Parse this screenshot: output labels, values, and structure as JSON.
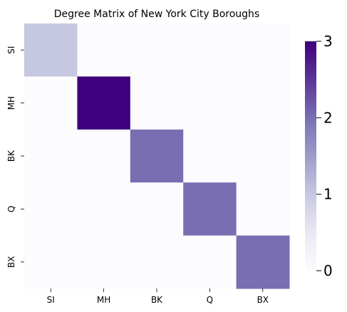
{
  "chart_data": {
    "type": "heatmap",
    "title": "Degree Matrix of New York City Boroughs",
    "xlabel": "",
    "ylabel": "",
    "x_categories": [
      "SI",
      "MH",
      "BK",
      "Q",
      "BX"
    ],
    "y_categories": [
      "SI",
      "MH",
      "BK",
      "Q",
      "BX"
    ],
    "values": [
      [
        1,
        0,
        0,
        0,
        0
      ],
      [
        0,
        3,
        0,
        0,
        0
      ],
      [
        0,
        0,
        2,
        0,
        0
      ],
      [
        0,
        0,
        0,
        2,
        0
      ],
      [
        0,
        0,
        0,
        0,
        2
      ]
    ],
    "colorbar": {
      "min": 0,
      "max": 3,
      "ticks": [
        "0",
        "1",
        "2",
        "3"
      ],
      "colormap": "Purples",
      "colors": [
        "#fcfbfd",
        "#efedf5",
        "#dadaeb",
        "#bcbddc",
        "#9e9ac8",
        "#807dba",
        "#6a51a3",
        "#54278f",
        "#3f007d"
      ]
    }
  }
}
